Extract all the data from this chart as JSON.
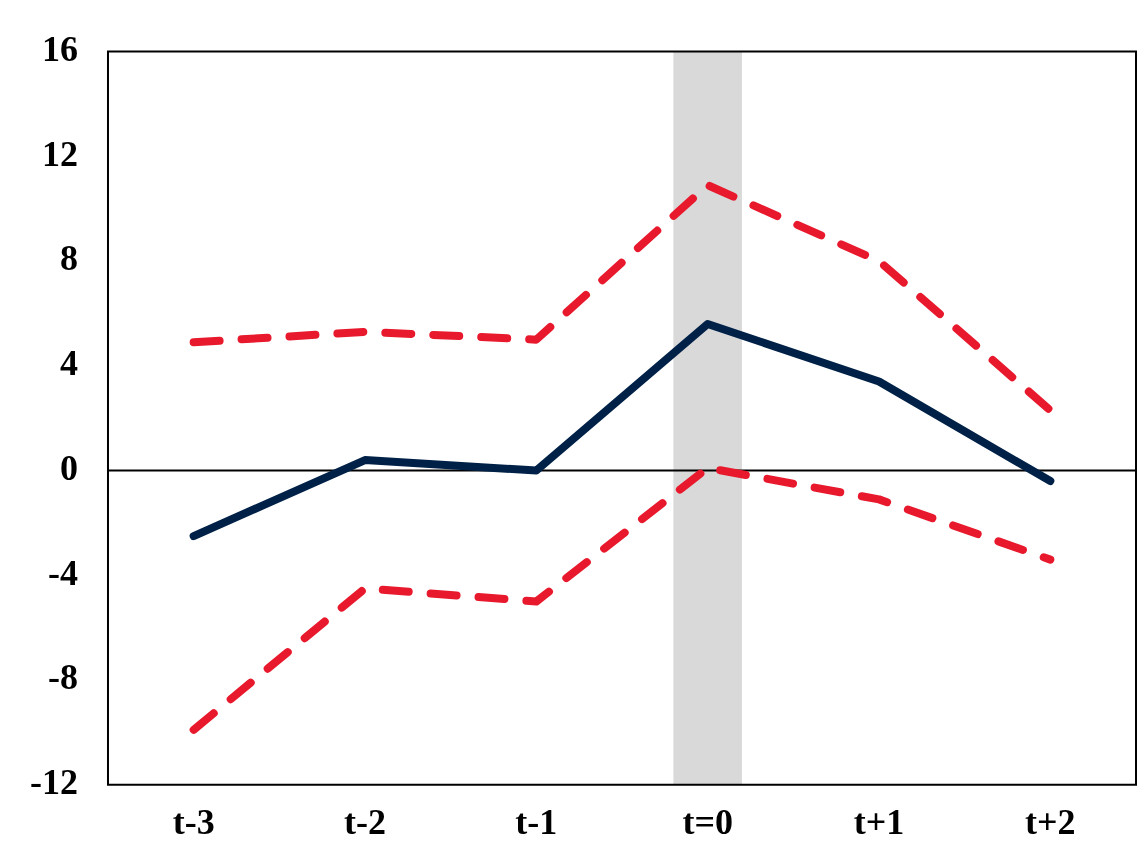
{
  "chart_data": {
    "type": "line",
    "categories": [
      "t-3",
      "t-2",
      "t-1",
      "t=0",
      "t+1",
      "t+2"
    ],
    "series": [
      {
        "color": "#002147",
        "line_style": "solid",
        "values": [
          -2.5,
          0.4,
          0,
          5.6,
          3.4,
          -0.4
        ]
      },
      {
        "color": "#e8192c",
        "line_style": "dashed",
        "values": [
          4.9,
          5.3,
          5.0,
          10.9,
          8.0,
          2.3
        ]
      },
      {
        "color": "#e8192c",
        "line_style": "dashed",
        "values": [
          -9.9,
          -4.5,
          -5.0,
          0.1,
          -1.1,
          -3.4
        ]
      }
    ],
    "ylim": [
      -12,
      16
    ],
    "yticks": [
      -12,
      -8,
      -4,
      0,
      4,
      8,
      12,
      16
    ],
    "ref_lines": [
      {
        "axis": "y",
        "value": 0,
        "color": "#000000"
      }
    ],
    "bands": [
      {
        "axis": "x",
        "from": "t=0",
        "to": "t=0",
        "color": "#d9d9d9"
      }
    ],
    "grid": false,
    "legend": false,
    "marker": "none"
  }
}
